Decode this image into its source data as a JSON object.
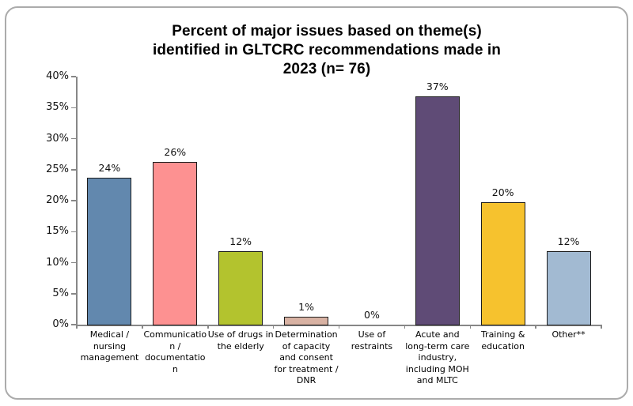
{
  "chart_data": {
    "type": "bar",
    "title": "Percent of major issues based on theme(s)\nidentified in GLTCRC recommendations made in\n2023 (n= 76)",
    "n": 76,
    "categories": [
      "Medical / nursing management",
      "Communication / documentation",
      "Use of drugs in the elderly",
      "Determination of capacity and consent for treatment / DNR",
      "Use of restraints",
      "Acute and long-term care industry, including MOH and MLTC",
      "Training & education",
      "Other**"
    ],
    "values": [
      23.7,
      26.3,
      11.8,
      1.3,
      0,
      36.8,
      19.7,
      11.8
    ],
    "value_labels": [
      "24%",
      "26%",
      "12%",
      "1%",
      "0%",
      "37%",
      "20%",
      "12%"
    ],
    "bar_colors": [
      "#6288ae",
      "#fd9191",
      "#b3c32e",
      "#d8b2a3",
      null,
      "#5f4b76",
      "#f6c22e",
      "#a2bad2"
    ],
    "xlabel": "",
    "ylabel": "",
    "ylim": [
      0,
      40
    ],
    "ytick_labels": [
      "0%",
      "5%",
      "10%",
      "15%",
      "20%",
      "25%",
      "30%",
      "35%",
      "40%"
    ],
    "grid": false,
    "legend": "none",
    "axis_color": "#878787",
    "bar_border_color": "#1c1c1c",
    "label_color": "#111111"
  }
}
